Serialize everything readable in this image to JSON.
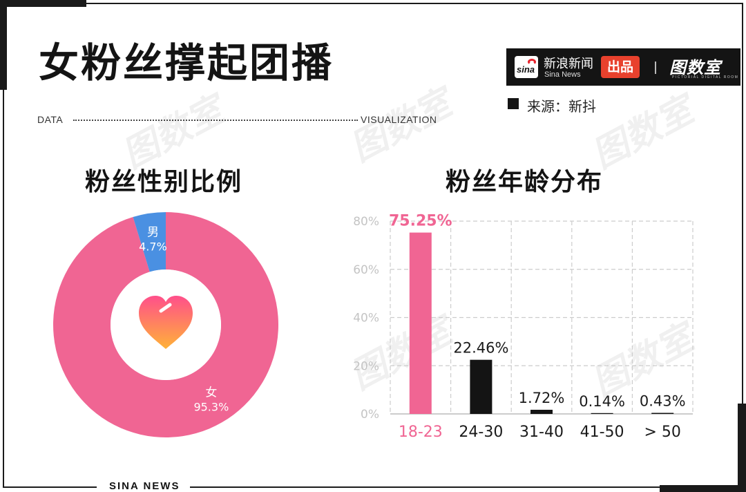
{
  "header": {
    "title": "女粉丝撑起团播",
    "label_left": "DATA",
    "label_right": "VISUALIZATION",
    "source": "来源：新抖"
  },
  "brand": {
    "sina_logo_text": "sina",
    "sina_cn": "新浪新闻",
    "sina_en": "Sina News",
    "badge": "出品",
    "tushuoshi_cn": "图数室",
    "tushuoshi_en": "PICTORIAL DIGITAL ROOM"
  },
  "watermark_text": "图数室",
  "footer": {
    "text": "SINA NEWS"
  },
  "colors": {
    "pink": "#f06593",
    "blue": "#4a90e2",
    "black": "#141414",
    "grid": "#cccccc",
    "heart_top": "#ff4f8b",
    "heart_bottom": "#ffb238"
  },
  "center_icon": "heart-icon",
  "chart_data": [
    {
      "type": "pie",
      "title": "粉丝性别比例",
      "donut": true,
      "slices": [
        {
          "label": "女",
          "value": 95.3,
          "value_label": "95.3%",
          "color": "#f06593"
        },
        {
          "label": "男",
          "value": 4.7,
          "value_label": "4.7%",
          "color": "#4a90e2"
        }
      ]
    },
    {
      "type": "bar",
      "title": "粉丝年龄分布",
      "categories": [
        "18-23",
        "24-30",
        "31-40",
        "41-50",
        "> 50"
      ],
      "values": [
        75.25,
        22.46,
        1.72,
        0.14,
        0.43
      ],
      "value_labels": [
        "75.25%",
        "22.46%",
        "1.72%",
        "0.14%",
        "0.43%"
      ],
      "highlight_index": 0,
      "ylim": [
        0,
        80
      ],
      "yticks": [
        0,
        20,
        40,
        60,
        80
      ],
      "ytick_labels": [
        "0%",
        "20%",
        "40%",
        "60%",
        "80%"
      ],
      "grid": true,
      "xlabel": "",
      "ylabel": ""
    }
  ]
}
